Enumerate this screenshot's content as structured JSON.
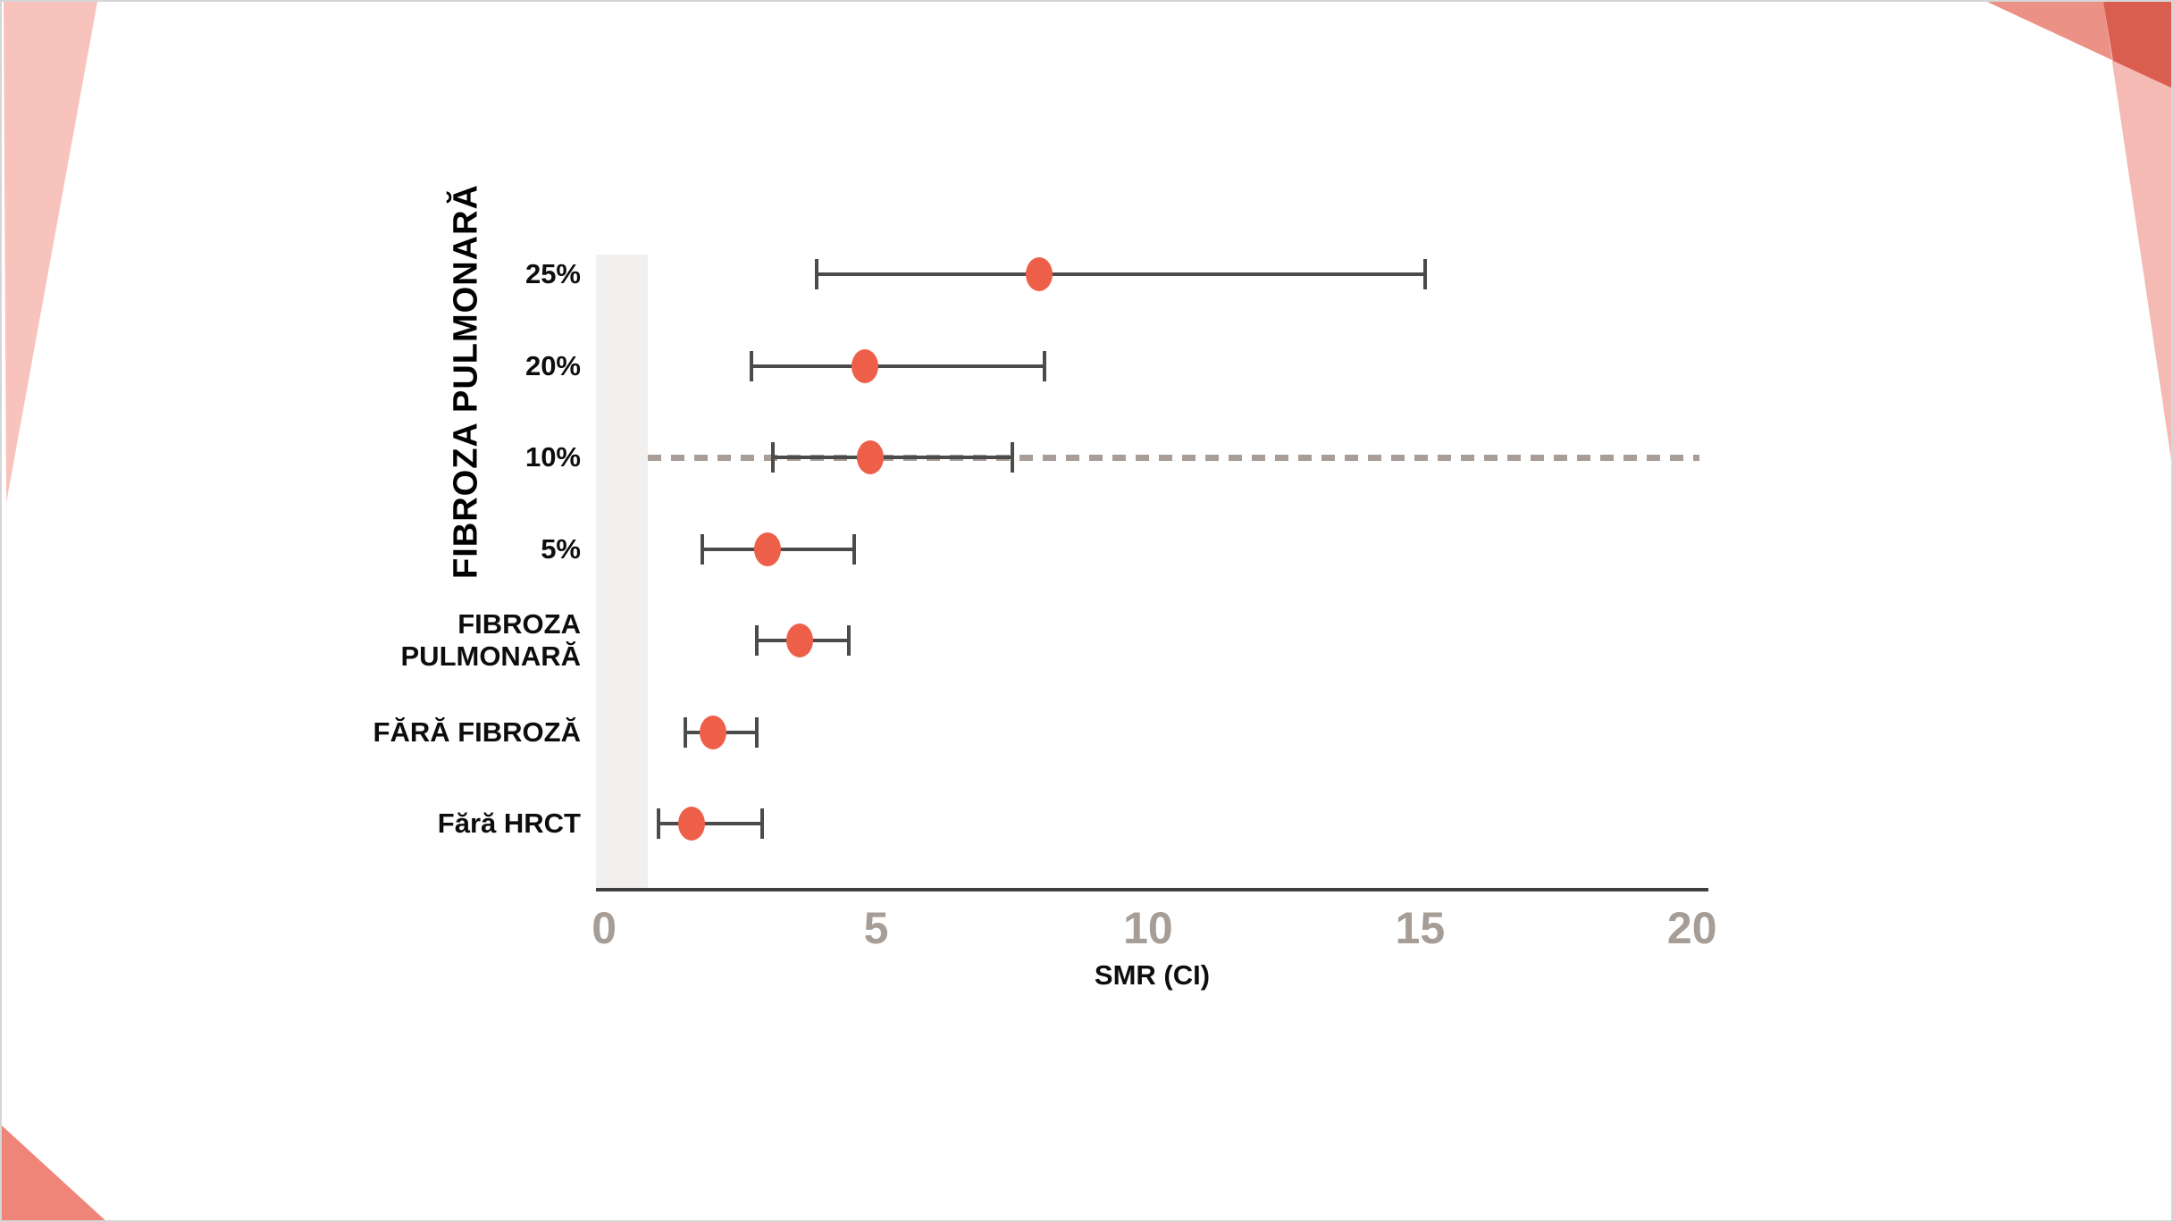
{
  "slide": {
    "background": "#ffffff",
    "border_color": "#d6d6d6",
    "decor": {
      "top_left_wedge_color": "#f8c3bd",
      "bottom_left_triangle_color": "#ef8478",
      "top_right_salmon_color": "#ec9186",
      "top_right_pink_color": "#f4bab3",
      "top_right_dark_color": "#d95e50"
    }
  },
  "chart_data": {
    "type": "scatter",
    "subtype": "forest-plot-dots-with-ci",
    "title": "",
    "xlabel": "SMR (CI)",
    "ylabel": "FIBROZA PULMONARĂ",
    "categories": [
      "25%",
      "20%",
      "10%",
      "5%",
      "FIBROZA PULMONARĂ",
      "FĂRĂ FIBROZĂ",
      "Fără HRCT"
    ],
    "points": [
      {
        "label": "25%",
        "value": 8.0,
        "ci_low": 3.9,
        "ci_high": 15.1
      },
      {
        "label": "20%",
        "value": 4.8,
        "ci_low": 2.7,
        "ci_high": 8.1
      },
      {
        "label": "10%",
        "value": 4.9,
        "ci_low": 3.1,
        "ci_high": 7.5,
        "dashed_reference_line": true
      },
      {
        "label": "5%",
        "value": 3.0,
        "ci_low": 1.8,
        "ci_high": 4.6
      },
      {
        "label": "FIBROZA PULMONARĂ",
        "value": 3.6,
        "ci_low": 2.8,
        "ci_high": 4.5
      },
      {
        "label": "FĂRĂ FIBROZĂ",
        "value": 2.0,
        "ci_low": 1.5,
        "ci_high": 2.8
      },
      {
        "label": "Fără HRCT",
        "value": 1.6,
        "ci_low": 1.0,
        "ci_high": 2.9
      }
    ],
    "x_ticks": [
      "0",
      "5",
      "10",
      "15",
      "20"
    ],
    "x_tick_values": [
      0,
      5,
      10,
      15,
      20
    ],
    "xlim": [
      -0.15,
      20.3
    ],
    "grid": false,
    "legend": false,
    "reference_band": {
      "x0": -0.15,
      "x1": 0.8,
      "color": "#f1f0ee"
    },
    "colors": {
      "dot": "#ee5f4a",
      "error_bar": "#4b4b4b",
      "dashed_line": "#a89e97",
      "axis_line": "#3f3f3f",
      "tick_label": "#a69d96",
      "text": "#0d0d0d"
    }
  }
}
